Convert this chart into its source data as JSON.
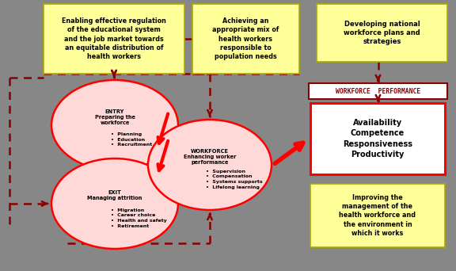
{
  "bg_color": "#878787",
  "yellow_box_color": "#FFFF99",
  "yellow_box_border": "#CCCC00",
  "ellipse_fill": "#FFD8D8",
  "ellipse_edge": "#FF0000",
  "white_box_fill": "#FFFFFF",
  "white_box_edge": "#FF0000",
  "wp_box_fill": "#FFFFFF",
  "wp_box_edge": "#8B0000",
  "red_arrow": "#FF0000",
  "dashed_color": "#8B0000",
  "top_left_box": "Enabling effective regulation\nof the educational system\nand the job market towards\nan equitable distribution of\nhealth workers",
  "top_mid_box": "Achieving an\nappropriate mix of\nhealth workers\nresponsible to\npopulation needs",
  "top_right_box": "Developing national\nworkforce plans and\nstrategies",
  "entry_title": "ENTRY\nPreparing the\nworkforce",
  "entry_items": "•  Planning\n•  Education\n•  Recruitment",
  "exit_title": "EXIT\nManaging attrition",
  "exit_items": "•  Migration\n•  Career choice\n•  Health and safety\n•  Retirement",
  "workforce_title": "WORKFORCE\nEnhancing worker\nperformance",
  "workforce_items": "•  Supervision\n•  Compensation\n•  Systems supports\n•  Lifelong learning",
  "wp_label": "WORKFORCE  PERFORMANCE",
  "perf_box": "Availability\nCompetence\nResponsiveness\nProductivity",
  "bottom_right_box": "Improving the\nmanagement of the\nhealth workforce and\nthe environment in\nwhich it works"
}
